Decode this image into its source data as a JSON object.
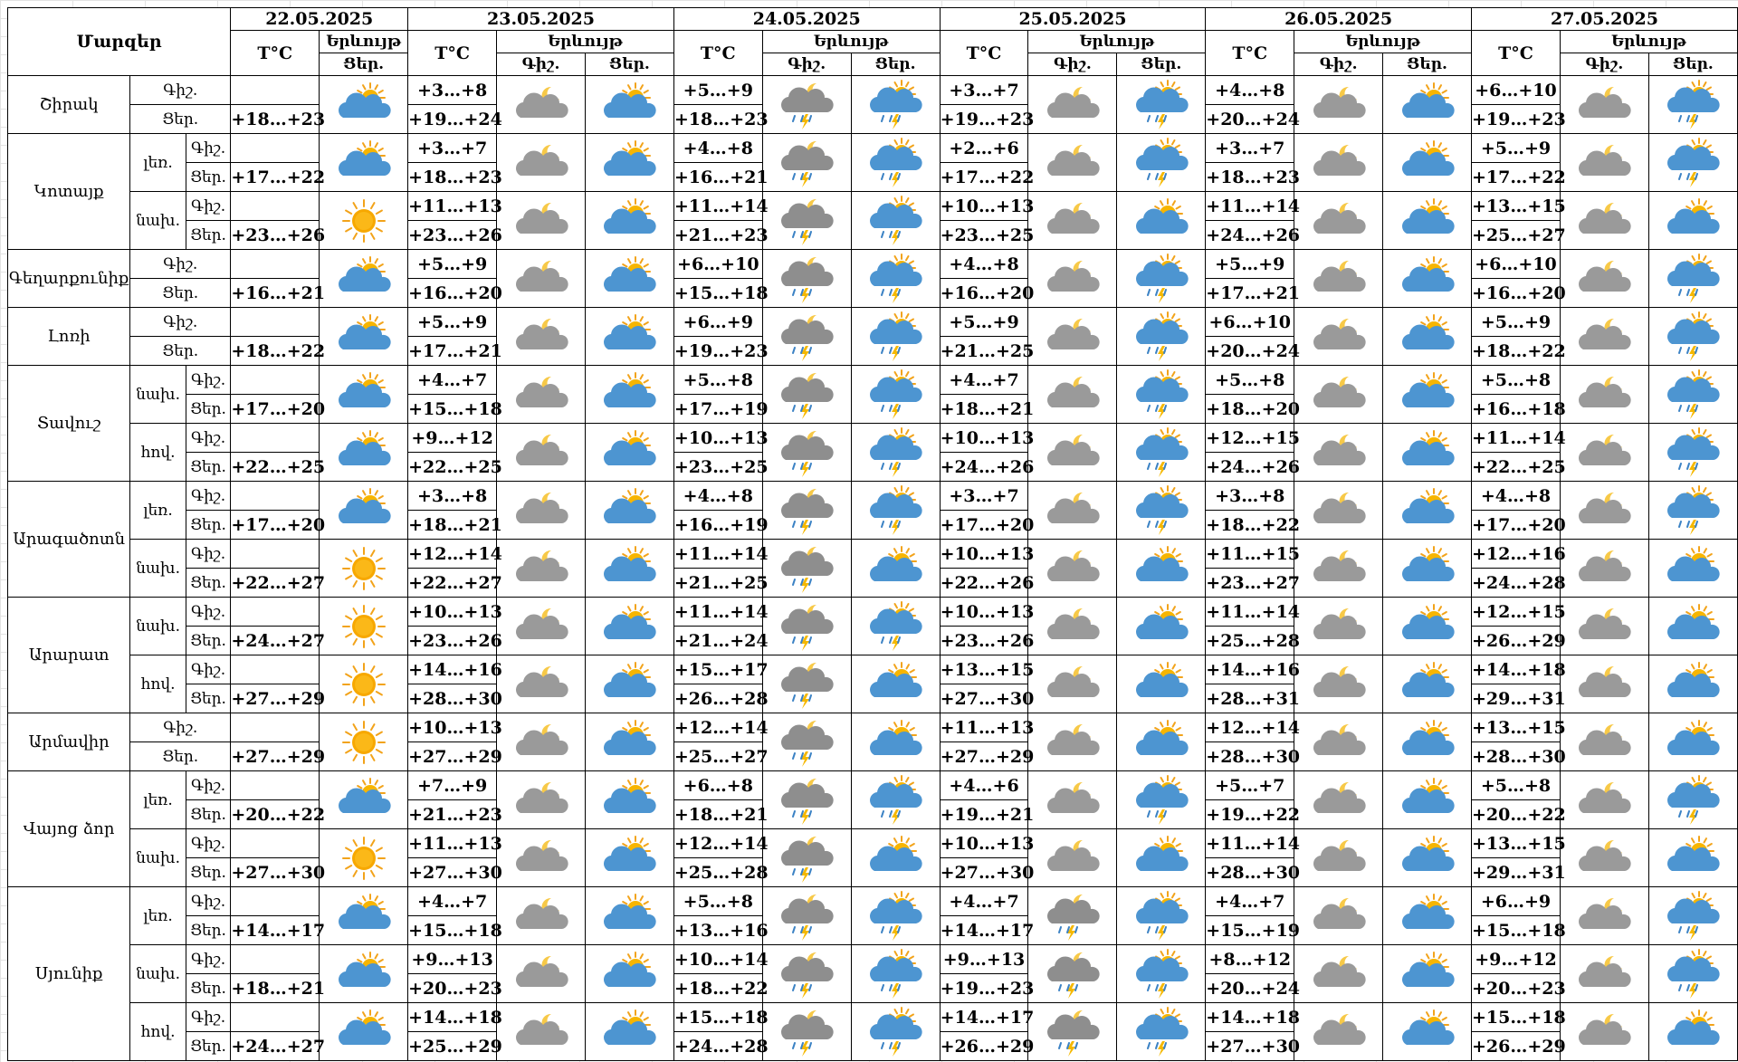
{
  "header": {
    "regions_label": "Մարզեր",
    "temp_label": "T°C",
    "weather_label": "Երևույթ",
    "night_label": "Գիշ.",
    "day_label": "Ցեր."
  },
  "dates": [
    "22.05.2025",
    "23.05.2025",
    "24.05.2025",
    "25.05.2025",
    "26.05.2025",
    "27.05.2025"
  ],
  "icon_legend": {
    "partly-cloudy-day": "sun behind blue cloud",
    "sunny": "sun",
    "cloudy-night": "moon behind grey cloud",
    "thunderstorm": "grey cloud with moon, rain and lightning",
    "rain-thunder-day": "sun behind blue cloud with rain and lightning"
  },
  "regions": [
    {
      "name": "Շիրակ",
      "zones": [
        {
          "label": "",
          "first": {
            "night": "",
            "day": "+18…+23",
            "icon": "partly-cloudy-day"
          },
          "next": [
            {
              "night": "+3…+8",
              "day": "+19…+24",
              "icon_n": "cloudy-night",
              "icon_d": "partly-cloudy-day"
            },
            {
              "night": "+5…+9",
              "day": "+18…+23",
              "icon_n": "thunderstorm",
              "icon_d": "rain-thunder-day"
            },
            {
              "night": "+3…+7",
              "day": "+19…+23",
              "icon_n": "cloudy-night",
              "icon_d": "rain-thunder-day"
            },
            {
              "night": "+4…+8",
              "day": "+20…+24",
              "icon_n": "cloudy-night",
              "icon_d": "partly-cloudy-day"
            },
            {
              "night": "+6…+10",
              "day": "+19…+23",
              "icon_n": "cloudy-night",
              "icon_d": "rain-thunder-day"
            }
          ]
        }
      ]
    },
    {
      "name": "Կոտայք",
      "zones": [
        {
          "label": "լեռ.",
          "first": {
            "night": "",
            "day": "+17…+22",
            "icon": "partly-cloudy-day"
          },
          "next": [
            {
              "night": "+3…+7",
              "day": "+18…+23",
              "icon_n": "cloudy-night",
              "icon_d": "partly-cloudy-day"
            },
            {
              "night": "+4…+8",
              "day": "+16…+21",
              "icon_n": "thunderstorm",
              "icon_d": "rain-thunder-day"
            },
            {
              "night": "+2…+6",
              "day": "+17…+22",
              "icon_n": "cloudy-night",
              "icon_d": "rain-thunder-day"
            },
            {
              "night": "+3…+7",
              "day": "+18…+23",
              "icon_n": "cloudy-night",
              "icon_d": "partly-cloudy-day"
            },
            {
              "night": "+5…+9",
              "day": "+17…+22",
              "icon_n": "cloudy-night",
              "icon_d": "rain-thunder-day"
            }
          ]
        },
        {
          "label": "նախ.",
          "first": {
            "night": "",
            "day": "+23…+26",
            "icon": "sunny"
          },
          "next": [
            {
              "night": "+11…+13",
              "day": "+23…+26",
              "icon_n": "cloudy-night",
              "icon_d": "partly-cloudy-day"
            },
            {
              "night": "+11…+14",
              "day": "+21…+23",
              "icon_n": "thunderstorm",
              "icon_d": "rain-thunder-day"
            },
            {
              "night": "+10…+13",
              "day": "+23…+25",
              "icon_n": "cloudy-night",
              "icon_d": "partly-cloudy-day"
            },
            {
              "night": "+11…+14",
              "day": "+24…+26",
              "icon_n": "cloudy-night",
              "icon_d": "partly-cloudy-day"
            },
            {
              "night": "+13…+15",
              "day": "+25…+27",
              "icon_n": "cloudy-night",
              "icon_d": "partly-cloudy-day"
            }
          ]
        }
      ]
    },
    {
      "name": "Գեղարքունիք",
      "zones": [
        {
          "label": "",
          "first": {
            "night": "",
            "day": "+16…+21",
            "icon": "partly-cloudy-day"
          },
          "next": [
            {
              "night": "+5…+9",
              "day": "+16…+20",
              "icon_n": "cloudy-night",
              "icon_d": "partly-cloudy-day"
            },
            {
              "night": "+6…+10",
              "day": "+15…+18",
              "icon_n": "thunderstorm",
              "icon_d": "rain-thunder-day"
            },
            {
              "night": "+4…+8",
              "day": "+16…+20",
              "icon_n": "cloudy-night",
              "icon_d": "rain-thunder-day"
            },
            {
              "night": "+5…+9",
              "day": "+17…+21",
              "icon_n": "cloudy-night",
              "icon_d": "partly-cloudy-day"
            },
            {
              "night": "+6…+10",
              "day": "+16…+20",
              "icon_n": "cloudy-night",
              "icon_d": "rain-thunder-day"
            }
          ]
        }
      ]
    },
    {
      "name": "Լոռի",
      "zones": [
        {
          "label": "",
          "first": {
            "night": "",
            "day": "+18…+22",
            "icon": "partly-cloudy-day"
          },
          "next": [
            {
              "night": "+5…+9",
              "day": "+17…+21",
              "icon_n": "cloudy-night",
              "icon_d": "partly-cloudy-day"
            },
            {
              "night": "+6…+9",
              "day": "+19…+23",
              "icon_n": "thunderstorm",
              "icon_d": "rain-thunder-day"
            },
            {
              "night": "+5…+9",
              "day": "+21…+25",
              "icon_n": "cloudy-night",
              "icon_d": "rain-thunder-day"
            },
            {
              "night": "+6…+10",
              "day": "+20…+24",
              "icon_n": "cloudy-night",
              "icon_d": "partly-cloudy-day"
            },
            {
              "night": "+5…+9",
              "day": "+18…+22",
              "icon_n": "cloudy-night",
              "icon_d": "rain-thunder-day"
            }
          ]
        }
      ]
    },
    {
      "name": "Տավուշ",
      "zones": [
        {
          "label": "նախ.",
          "first": {
            "night": "",
            "day": "+17…+20",
            "icon": "partly-cloudy-day"
          },
          "next": [
            {
              "night": "+4…+7",
              "day": "+15…+18",
              "icon_n": "cloudy-night",
              "icon_d": "partly-cloudy-day"
            },
            {
              "night": "+5…+8",
              "day": "+17…+19",
              "icon_n": "thunderstorm",
              "icon_d": "rain-thunder-day"
            },
            {
              "night": "+4…+7",
              "day": "+18…+21",
              "icon_n": "cloudy-night",
              "icon_d": "rain-thunder-day"
            },
            {
              "night": "+5…+8",
              "day": "+18…+20",
              "icon_n": "cloudy-night",
              "icon_d": "partly-cloudy-day"
            },
            {
              "night": "+5…+8",
              "day": "+16…+18",
              "icon_n": "cloudy-night",
              "icon_d": "rain-thunder-day"
            }
          ]
        },
        {
          "label": "հով.",
          "first": {
            "night": "",
            "day": "+22…+25",
            "icon": "partly-cloudy-day"
          },
          "next": [
            {
              "night": "+9…+12",
              "day": "+22…+25",
              "icon_n": "cloudy-night",
              "icon_d": "partly-cloudy-day"
            },
            {
              "night": "+10…+13",
              "day": "+23…+25",
              "icon_n": "thunderstorm",
              "icon_d": "rain-thunder-day"
            },
            {
              "night": "+10…+13",
              "day": "+24…+26",
              "icon_n": "cloudy-night",
              "icon_d": "rain-thunder-day"
            },
            {
              "night": "+12…+15",
              "day": "+24…+26",
              "icon_n": "cloudy-night",
              "icon_d": "partly-cloudy-day"
            },
            {
              "night": "+11…+14",
              "day": "+22…+25",
              "icon_n": "cloudy-night",
              "icon_d": "rain-thunder-day"
            }
          ]
        }
      ]
    },
    {
      "name": "Արագածոտն",
      "zones": [
        {
          "label": "լեռ.",
          "first": {
            "night": "",
            "day": "+17…+20",
            "icon": "partly-cloudy-day"
          },
          "next": [
            {
              "night": "+3…+8",
              "day": "+18…+21",
              "icon_n": "cloudy-night",
              "icon_d": "partly-cloudy-day"
            },
            {
              "night": "+4…+8",
              "day": "+16…+19",
              "icon_n": "thunderstorm",
              "icon_d": "rain-thunder-day"
            },
            {
              "night": "+3…+7",
              "day": "+17…+20",
              "icon_n": "cloudy-night",
              "icon_d": "rain-thunder-day"
            },
            {
              "night": "+3…+8",
              "day": "+18…+22",
              "icon_n": "cloudy-night",
              "icon_d": "partly-cloudy-day"
            },
            {
              "night": "+4…+8",
              "day": "+17…+20",
              "icon_n": "cloudy-night",
              "icon_d": "rain-thunder-day"
            }
          ]
        },
        {
          "label": "նախ.",
          "first": {
            "night": "",
            "day": "+22…+27",
            "icon": "sunny"
          },
          "next": [
            {
              "night": "+12…+14",
              "day": "+22…+27",
              "icon_n": "cloudy-night",
              "icon_d": "partly-cloudy-day"
            },
            {
              "night": "+11…+14",
              "day": "+21…+25",
              "icon_n": "thunderstorm",
              "icon_d": "partly-cloudy-day"
            },
            {
              "night": "+10…+13",
              "day": "+22…+26",
              "icon_n": "cloudy-night",
              "icon_d": "partly-cloudy-day"
            },
            {
              "night": "+11…+15",
              "day": "+23…+27",
              "icon_n": "cloudy-night",
              "icon_d": "partly-cloudy-day"
            },
            {
              "night": "+12…+16",
              "day": "+24…+28",
              "icon_n": "cloudy-night",
              "icon_d": "partly-cloudy-day"
            }
          ]
        }
      ]
    },
    {
      "name": "Արարատ",
      "zones": [
        {
          "label": "նախ.",
          "first": {
            "night": "",
            "day": "+24…+27",
            "icon": "sunny"
          },
          "next": [
            {
              "night": "+10…+13",
              "day": "+23…+26",
              "icon_n": "cloudy-night",
              "icon_d": "partly-cloudy-day"
            },
            {
              "night": "+11…+14",
              "day": "+21…+24",
              "icon_n": "thunderstorm",
              "icon_d": "rain-thunder-day"
            },
            {
              "night": "+10…+13",
              "day": "+23…+26",
              "icon_n": "cloudy-night",
              "icon_d": "partly-cloudy-day"
            },
            {
              "night": "+11…+14",
              "day": "+25…+28",
              "icon_n": "cloudy-night",
              "icon_d": "partly-cloudy-day"
            },
            {
              "night": "+12…+15",
              "day": "+26…+29",
              "icon_n": "cloudy-night",
              "icon_d": "partly-cloudy-day"
            }
          ]
        },
        {
          "label": "հով.",
          "first": {
            "night": "",
            "day": "+27…+29",
            "icon": "sunny"
          },
          "next": [
            {
              "night": "+14…+16",
              "day": "+28…+30",
              "icon_n": "cloudy-night",
              "icon_d": "partly-cloudy-day"
            },
            {
              "night": "+15…+17",
              "day": "+26…+28",
              "icon_n": "thunderstorm",
              "icon_d": "partly-cloudy-day"
            },
            {
              "night": "+13…+15",
              "day": "+27…+30",
              "icon_n": "cloudy-night",
              "icon_d": "partly-cloudy-day"
            },
            {
              "night": "+14…+16",
              "day": "+28…+31",
              "icon_n": "cloudy-night",
              "icon_d": "partly-cloudy-day"
            },
            {
              "night": "+14…+18",
              "day": "+29…+31",
              "icon_n": "cloudy-night",
              "icon_d": "partly-cloudy-day"
            }
          ]
        }
      ]
    },
    {
      "name": "Արմավիր",
      "zones": [
        {
          "label": "",
          "first": {
            "night": "",
            "day": "+27…+29",
            "icon": "sunny"
          },
          "next": [
            {
              "night": "+10…+13",
              "day": "+27…+29",
              "icon_n": "cloudy-night",
              "icon_d": "partly-cloudy-day"
            },
            {
              "night": "+12…+14",
              "day": "+25…+27",
              "icon_n": "thunderstorm",
              "icon_d": "partly-cloudy-day"
            },
            {
              "night": "+11…+13",
              "day": "+27…+29",
              "icon_n": "cloudy-night",
              "icon_d": "partly-cloudy-day"
            },
            {
              "night": "+12…+14",
              "day": "+28…+30",
              "icon_n": "cloudy-night",
              "icon_d": "partly-cloudy-day"
            },
            {
              "night": "+13…+15",
              "day": "+28…+30",
              "icon_n": "cloudy-night",
              "icon_d": "partly-cloudy-day"
            }
          ]
        }
      ]
    },
    {
      "name": "Վայոց ձոր",
      "zones": [
        {
          "label": "լեռ.",
          "first": {
            "night": "",
            "day": "+20…+22",
            "icon": "partly-cloudy-day"
          },
          "next": [
            {
              "night": "+7…+9",
              "day": "+21…+23",
              "icon_n": "cloudy-night",
              "icon_d": "partly-cloudy-day"
            },
            {
              "night": "+6…+8",
              "day": "+18…+21",
              "icon_n": "thunderstorm",
              "icon_d": "rain-thunder-day"
            },
            {
              "night": "+4…+6",
              "day": "+19…+21",
              "icon_n": "cloudy-night",
              "icon_d": "rain-thunder-day"
            },
            {
              "night": "+5…+7",
              "day": "+19…+22",
              "icon_n": "cloudy-night",
              "icon_d": "partly-cloudy-day"
            },
            {
              "night": "+5…+8",
              "day": "+20…+22",
              "icon_n": "cloudy-night",
              "icon_d": "rain-thunder-day"
            }
          ]
        },
        {
          "label": "նախ.",
          "first": {
            "night": "",
            "day": "+27…+30",
            "icon": "sunny"
          },
          "next": [
            {
              "night": "+11…+13",
              "day": "+27…+30",
              "icon_n": "cloudy-night",
              "icon_d": "partly-cloudy-day"
            },
            {
              "night": "+12…+14",
              "day": "+25…+28",
              "icon_n": "thunderstorm",
              "icon_d": "partly-cloudy-day"
            },
            {
              "night": "+10…+13",
              "day": "+27…+30",
              "icon_n": "cloudy-night",
              "icon_d": "partly-cloudy-day"
            },
            {
              "night": "+11…+14",
              "day": "+28…+30",
              "icon_n": "cloudy-night",
              "icon_d": "partly-cloudy-day"
            },
            {
              "night": "+13…+15",
              "day": "+29…+31",
              "icon_n": "cloudy-night",
              "icon_d": "partly-cloudy-day"
            }
          ]
        }
      ]
    },
    {
      "name": "Սյունիք",
      "zones": [
        {
          "label": "լեռ.",
          "first": {
            "night": "",
            "day": "+14…+17",
            "icon": "partly-cloudy-day"
          },
          "next": [
            {
              "night": "+4…+7",
              "day": "+15…+18",
              "icon_n": "cloudy-night",
              "icon_d": "partly-cloudy-day"
            },
            {
              "night": "+5…+8",
              "day": "+13…+16",
              "icon_n": "thunderstorm",
              "icon_d": "rain-thunder-day"
            },
            {
              "night": "+4…+7",
              "day": "+14…+17",
              "icon_n": "thunderstorm",
              "icon_d": "rain-thunder-day"
            },
            {
              "night": "+4…+7",
              "day": "+15…+19",
              "icon_n": "cloudy-night",
              "icon_d": "partly-cloudy-day"
            },
            {
              "night": "+6…+9",
              "day": "+15…+18",
              "icon_n": "cloudy-night",
              "icon_d": "rain-thunder-day"
            }
          ]
        },
        {
          "label": "նախ.",
          "first": {
            "night": "",
            "day": "+18…+21",
            "icon": "partly-cloudy-day"
          },
          "next": [
            {
              "night": "+9…+13",
              "day": "+20…+23",
              "icon_n": "cloudy-night",
              "icon_d": "partly-cloudy-day"
            },
            {
              "night": "+10…+14",
              "day": "+18…+22",
              "icon_n": "thunderstorm",
              "icon_d": "rain-thunder-day"
            },
            {
              "night": "+9…+13",
              "day": "+19…+23",
              "icon_n": "thunderstorm",
              "icon_d": "rain-thunder-day"
            },
            {
              "night": "+8…+12",
              "day": "+20…+24",
              "icon_n": "cloudy-night",
              "icon_d": "partly-cloudy-day"
            },
            {
              "night": "+9…+12",
              "day": "+20…+23",
              "icon_n": "cloudy-night",
              "icon_d": "rain-thunder-day"
            }
          ]
        },
        {
          "label": "հով.",
          "first": {
            "night": "",
            "day": "+24…+27",
            "icon": "partly-cloudy-day"
          },
          "next": [
            {
              "night": "+14…+18",
              "day": "+25…+29",
              "icon_n": "cloudy-night",
              "icon_d": "partly-cloudy-day"
            },
            {
              "night": "+15…+18",
              "day": "+24…+28",
              "icon_n": "thunderstorm",
              "icon_d": "rain-thunder-day"
            },
            {
              "night": "+14…+17",
              "day": "+26…+29",
              "icon_n": "thunderstorm",
              "icon_d": "rain-thunder-day"
            },
            {
              "night": "+14…+18",
              "day": "+27…+30",
              "icon_n": "cloudy-night",
              "icon_d": "partly-cloudy-day"
            },
            {
              "night": "+15…+18",
              "day": "+26…+29",
              "icon_n": "cloudy-night",
              "icon_d": "partly-cloudy-day"
            }
          ]
        }
      ]
    }
  ]
}
